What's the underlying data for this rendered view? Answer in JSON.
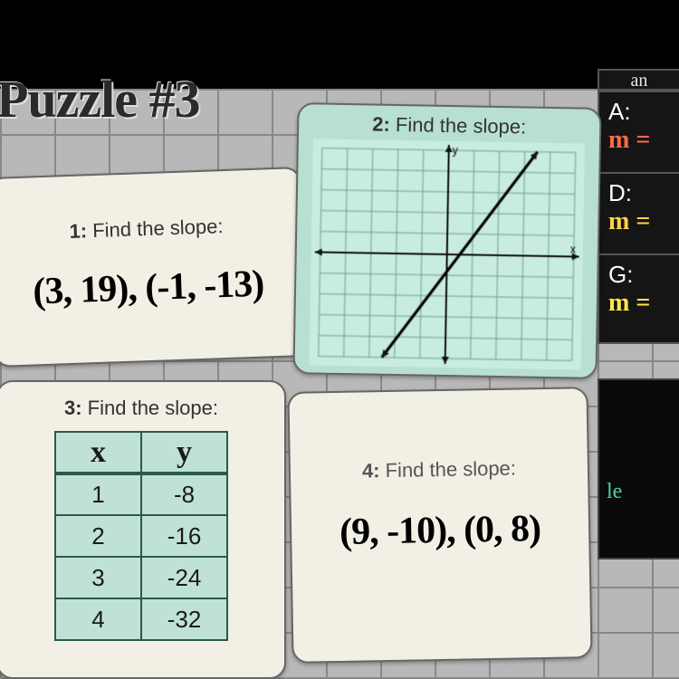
{
  "title": "Puzzle #3",
  "cards": {
    "c1": {
      "label_num": "1:",
      "label_text": " Find the slope:",
      "points": "(3, 19), (-1, -13)"
    },
    "c2": {
      "label_num": "2:",
      "label_text": " Find the slope:",
      "graph": {
        "xmin": -5,
        "xmax": 5,
        "ymin": -5,
        "ymax": 5,
        "grid_color": "#6aa090",
        "axis_color": "#111111",
        "bg_color": "#c8ece0",
        "line_points": [
          [
            -2.5,
            -5
          ],
          [
            3.5,
            5
          ]
        ],
        "line_color": "#000000",
        "line_width": 3,
        "y_label": "y",
        "x_label": "x"
      }
    },
    "c3": {
      "label_num": "3:",
      "label_text": " Find the slope:",
      "table": {
        "headers": [
          "x",
          "y"
        ],
        "rows": [
          [
            1,
            -8
          ],
          [
            2,
            -16
          ],
          [
            3,
            -24
          ],
          [
            4,
            -32
          ]
        ],
        "header_bg": "#c0e2d6",
        "cell_bg": "#c0e2d6",
        "border_color": "#2a5a4a"
      }
    },
    "c4": {
      "label_num": "4:",
      "label_text": " Find the slope:",
      "points": "(9, -10), (0, 8)"
    }
  },
  "answers_header": "an",
  "answers": [
    {
      "letter": "A:",
      "eq": "m =",
      "color": "#ff6a4a"
    },
    {
      "letter": "D:",
      "eq": "m =",
      "color": "#ffd24a"
    },
    {
      "letter": "G:",
      "eq": "m =",
      "color": "#ffe84a"
    }
  ],
  "band2_text": "le"
}
